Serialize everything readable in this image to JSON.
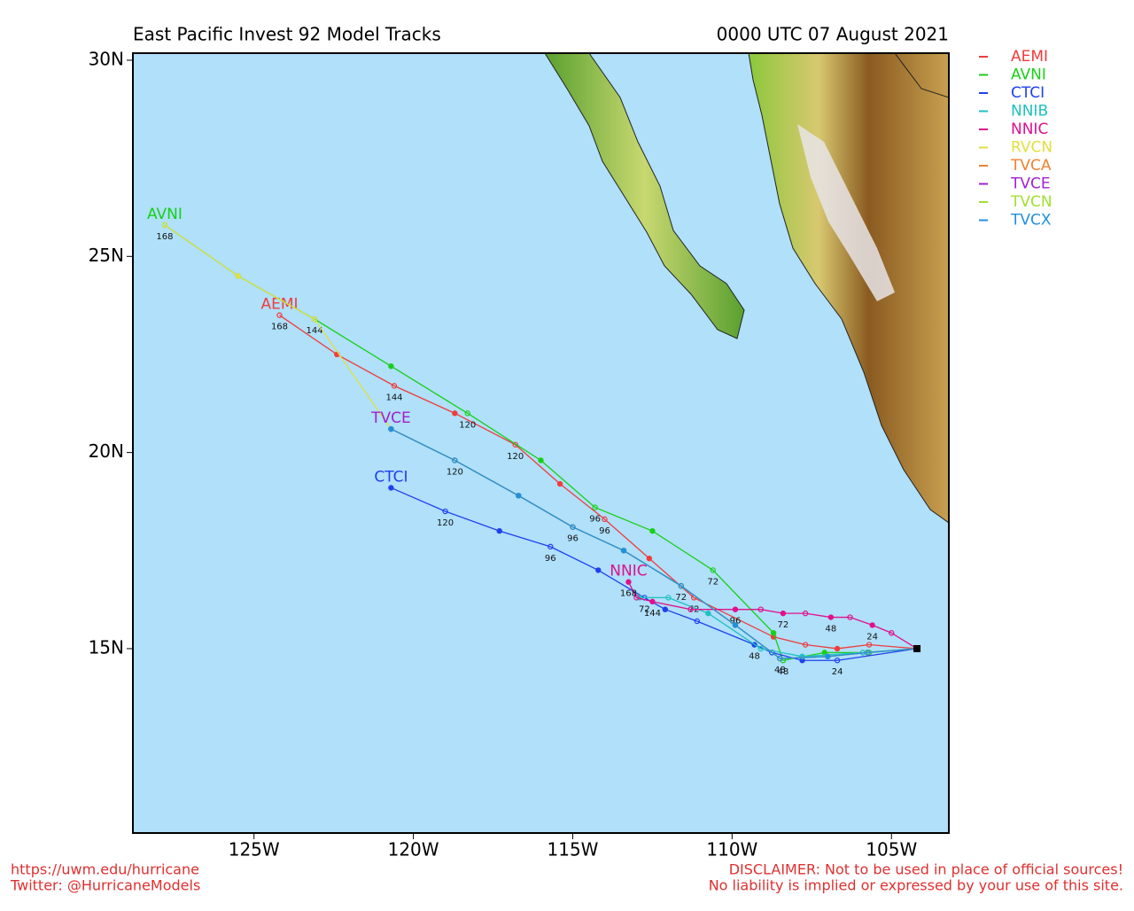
{
  "chart_data": {
    "type": "track",
    "title": "East Pacific Invest 92 Model Tracks",
    "subtitle": "0000 UTC 07 August 2021",
    "footer_left": [
      "https://uwm.edu/hurricane",
      "Twitter: @HurricaneModels"
    ],
    "footer_right": [
      "DISCLAIMER: Not to be used in place of official sources!",
      "No liability is implied or expressed by your use of this site."
    ],
    "xlim": [
      -128.8,
      -103.2
    ],
    "ylim": [
      10.3,
      30.18
    ],
    "xticks": [
      {
        "value": -125,
        "label": "125W"
      },
      {
        "value": -120,
        "label": "120W"
      },
      {
        "value": -115,
        "label": "115W"
      },
      {
        "value": -110,
        "label": "110W"
      },
      {
        "value": -105,
        "label": "105W"
      }
    ],
    "yticks": [
      {
        "value": 15,
        "label": "15N"
      },
      {
        "value": 20,
        "label": "20N"
      },
      {
        "value": 25,
        "label": "25N"
      },
      {
        "value": 30,
        "label": "30N"
      }
    ],
    "series": [
      {
        "name": "AEMI",
        "color": "#f03c3c",
        "end_label": true,
        "x": [
          -104.2,
          -105.7,
          -106.7,
          -107.7,
          -108.7,
          -111.2,
          -112.6,
          -114.0,
          -115.4,
          -116.8,
          -118.7,
          -120.6,
          -122.4,
          -124.2
        ],
        "values": [
          15,
          15.1,
          15.0,
          15.1,
          15.3,
          16.3,
          17.3,
          18.3,
          19.2,
          20.2,
          21.0,
          21.7,
          22.5,
          23.5
        ],
        "labels": [
          null,
          null,
          null,
          null,
          null,
          "72",
          null,
          "96",
          null,
          "120",
          null,
          "144",
          null,
          "168"
        ]
      },
      {
        "name": "AVNI",
        "color": "#18d018",
        "end_label": true,
        "x": [
          -104.2,
          -105.7,
          -107.1,
          -108.4,
          -108.7,
          -110.6,
          -112.5,
          -114.3,
          -116.0,
          -118.3,
          -120.7,
          -123.1,
          -125.5,
          -127.8
        ],
        "values": [
          15,
          14.9,
          14.9,
          14.7,
          15.4,
          17.0,
          18.0,
          18.6,
          19.8,
          21.0,
          22.2,
          23.4,
          24.5,
          25.8
        ],
        "labels": [
          null,
          null,
          null,
          "48",
          null,
          "72",
          null,
          "96",
          null,
          "120",
          null,
          "144",
          null,
          "168"
        ]
      },
      {
        "name": "CTCI",
        "color": "#2040f0",
        "end_label": true,
        "x": [
          -104.2,
          -106.7,
          -107.8,
          -108.75,
          -109.3,
          -111.1,
          -112.1,
          -112.75,
          -114.2,
          -115.7,
          -117.3,
          -119.0,
          -120.7
        ],
        "values": [
          15,
          14.7,
          14.7,
          14.9,
          15.1,
          15.7,
          16.0,
          16.3,
          17.0,
          17.6,
          18.0,
          18.5,
          19.1
        ],
        "labels": [
          null,
          "24",
          null,
          null,
          "48",
          null,
          null,
          "72",
          null,
          "96",
          null,
          "120",
          null
        ]
      },
      {
        "name": "NNIB",
        "color": "#20c0c0",
        "end_label": false,
        "x": [
          -104.2,
          -105.9,
          -107.8,
          -109.1,
          -110.75,
          -112.0,
          -112.9
        ],
        "values": [
          15,
          14.9,
          14.8,
          15.0,
          15.9,
          16.3,
          16.3
        ],
        "labels": [
          null,
          null,
          null,
          null,
          null,
          null,
          null
        ]
      },
      {
        "name": "NNIC",
        "color": "#e0108c",
        "end_label": true,
        "x": [
          -104.2,
          -105.0,
          -105.6,
          -106.3,
          -106.9,
          -107.7,
          -108.4,
          -109.1,
          -109.9,
          -111.3,
          -112.5,
          -113.0,
          -113.25
        ],
        "values": [
          15,
          15.4,
          15.6,
          15.8,
          15.8,
          15.9,
          15.9,
          16.0,
          16.0,
          16.0,
          16.2,
          16.3,
          16.7
        ],
        "labels": [
          null,
          null,
          "24",
          null,
          "48",
          null,
          "72",
          null,
          "96",
          null,
          "144",
          null,
          "168"
        ]
      },
      {
        "name": "RVCN",
        "color": "#e0e040",
        "end_label": false,
        "x": [
          -104.2,
          -105.75,
          -107.0,
          -108.5,
          -109.9,
          -111.6,
          -113.4,
          -115.0,
          -116.7,
          -118.7,
          -120.7,
          -123.1,
          -125.5,
          -127.8
        ],
        "values": [
          15,
          14.9,
          14.8,
          14.75,
          15.6,
          16.6,
          17.5,
          18.1,
          18.9,
          19.8,
          20.6,
          23.4,
          24.5,
          25.8
        ],
        "labels": [
          null,
          null,
          null,
          null,
          null,
          null,
          null,
          null,
          null,
          null,
          null,
          null,
          null,
          null
        ]
      },
      {
        "name": "TVCA",
        "color": "#f08030",
        "end_label": false,
        "x": [
          -104.2,
          -105.75,
          -107.0,
          -108.5,
          -109.9,
          -111.6,
          -113.4,
          -115.0,
          -116.7,
          -118.7,
          -120.7
        ],
        "values": [
          15,
          14.9,
          14.8,
          14.75,
          15.6,
          16.6,
          17.5,
          18.1,
          18.9,
          19.8,
          20.6
        ],
        "labels": [
          null,
          null,
          null,
          null,
          null,
          null,
          null,
          null,
          null,
          null,
          null
        ]
      },
      {
        "name": "TVCE",
        "color": "#a020d0",
        "end_label": true,
        "x": [
          -104.2,
          -105.75,
          -107.0,
          -108.5,
          -109.9,
          -111.6,
          -113.4,
          -115.0,
          -116.7,
          -118.7,
          -120.7
        ],
        "values": [
          15,
          14.9,
          14.8,
          14.75,
          15.6,
          16.6,
          17.5,
          18.1,
          18.9,
          19.8,
          20.6
        ],
        "labels": [
          null,
          null,
          null,
          null,
          null,
          null,
          null,
          null,
          null,
          null,
          null
        ]
      },
      {
        "name": "TVCN",
        "color": "#a0e030",
        "end_label": false,
        "x": [
          -104.2,
          -105.75,
          -107.0,
          -108.5,
          -109.9,
          -111.6,
          -113.4,
          -115.0,
          -116.7,
          -118.7,
          -120.7
        ],
        "values": [
          15,
          14.9,
          14.8,
          14.75,
          15.6,
          16.6,
          17.5,
          18.1,
          18.9,
          19.8,
          20.6
        ],
        "labels": [
          null,
          null,
          null,
          null,
          null,
          null,
          null,
          null,
          null,
          null,
          null
        ]
      },
      {
        "name": "TVCX",
        "color": "#2090e0",
        "end_label": false,
        "x": [
          -104.2,
          -105.75,
          -107.0,
          -108.5,
          -109.9,
          -111.6,
          -113.4,
          -115.0,
          -116.7,
          -118.7,
          -120.7
        ],
        "values": [
          15,
          14.9,
          14.8,
          14.75,
          15.6,
          16.6,
          17.5,
          18.1,
          18.9,
          19.8,
          20.6
        ],
        "labels": [
          null,
          null,
          null,
          "48",
          null,
          "72",
          null,
          "96",
          null,
          "120",
          null
        ]
      }
    ]
  }
}
